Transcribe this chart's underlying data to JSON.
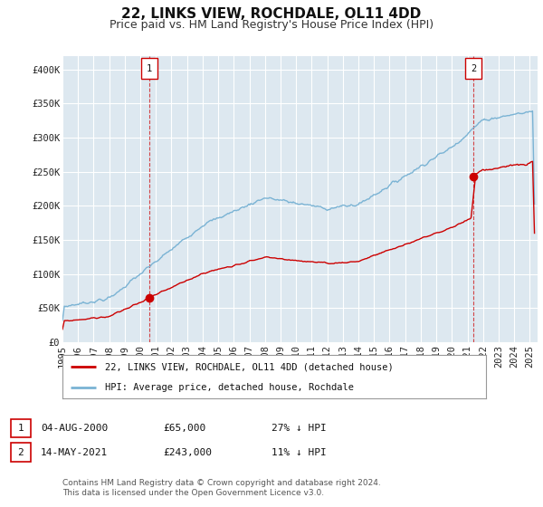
{
  "title": "22, LINKS VIEW, ROCHDALE, OL11 4DD",
  "subtitle": "Price paid vs. HM Land Registry's House Price Index (HPI)",
  "ylabel_ticks": [
    "£0",
    "£50K",
    "£100K",
    "£150K",
    "£200K",
    "£250K",
    "£300K",
    "£350K",
    "£400K"
  ],
  "ytick_values": [
    0,
    50000,
    100000,
    150000,
    200000,
    250000,
    300000,
    350000,
    400000
  ],
  "ylim": [
    0,
    420000
  ],
  "xlim_start": 1995.0,
  "xlim_end": 2025.5,
  "hpi_color": "#7ab3d4",
  "price_color": "#cc0000",
  "marker1_date": 2000.59,
  "marker1_price": 65000,
  "marker2_date": 2021.37,
  "marker2_price": 243000,
  "vline1_x": 2000.59,
  "vline2_x": 2021.37,
  "legend_line1": "22, LINKS VIEW, ROCHDALE, OL11 4DD (detached house)",
  "legend_line2": "HPI: Average price, detached house, Rochdale",
  "footer": "Contains HM Land Registry data © Crown copyright and database right 2024.\nThis data is licensed under the Open Government Licence v3.0.",
  "fig_bg_color": "#ffffff",
  "plot_bg_color": "#dde8f0",
  "grid_color": "#ffffff",
  "title_fontsize": 11,
  "subtitle_fontsize": 9,
  "tick_fontsize": 7.5,
  "xticks": [
    1995,
    1996,
    1997,
    1998,
    1999,
    2000,
    2001,
    2002,
    2003,
    2004,
    2005,
    2006,
    2007,
    2008,
    2009,
    2010,
    2011,
    2012,
    2013,
    2014,
    2015,
    2016,
    2017,
    2018,
    2019,
    2020,
    2021,
    2022,
    2023,
    2024,
    2025
  ]
}
